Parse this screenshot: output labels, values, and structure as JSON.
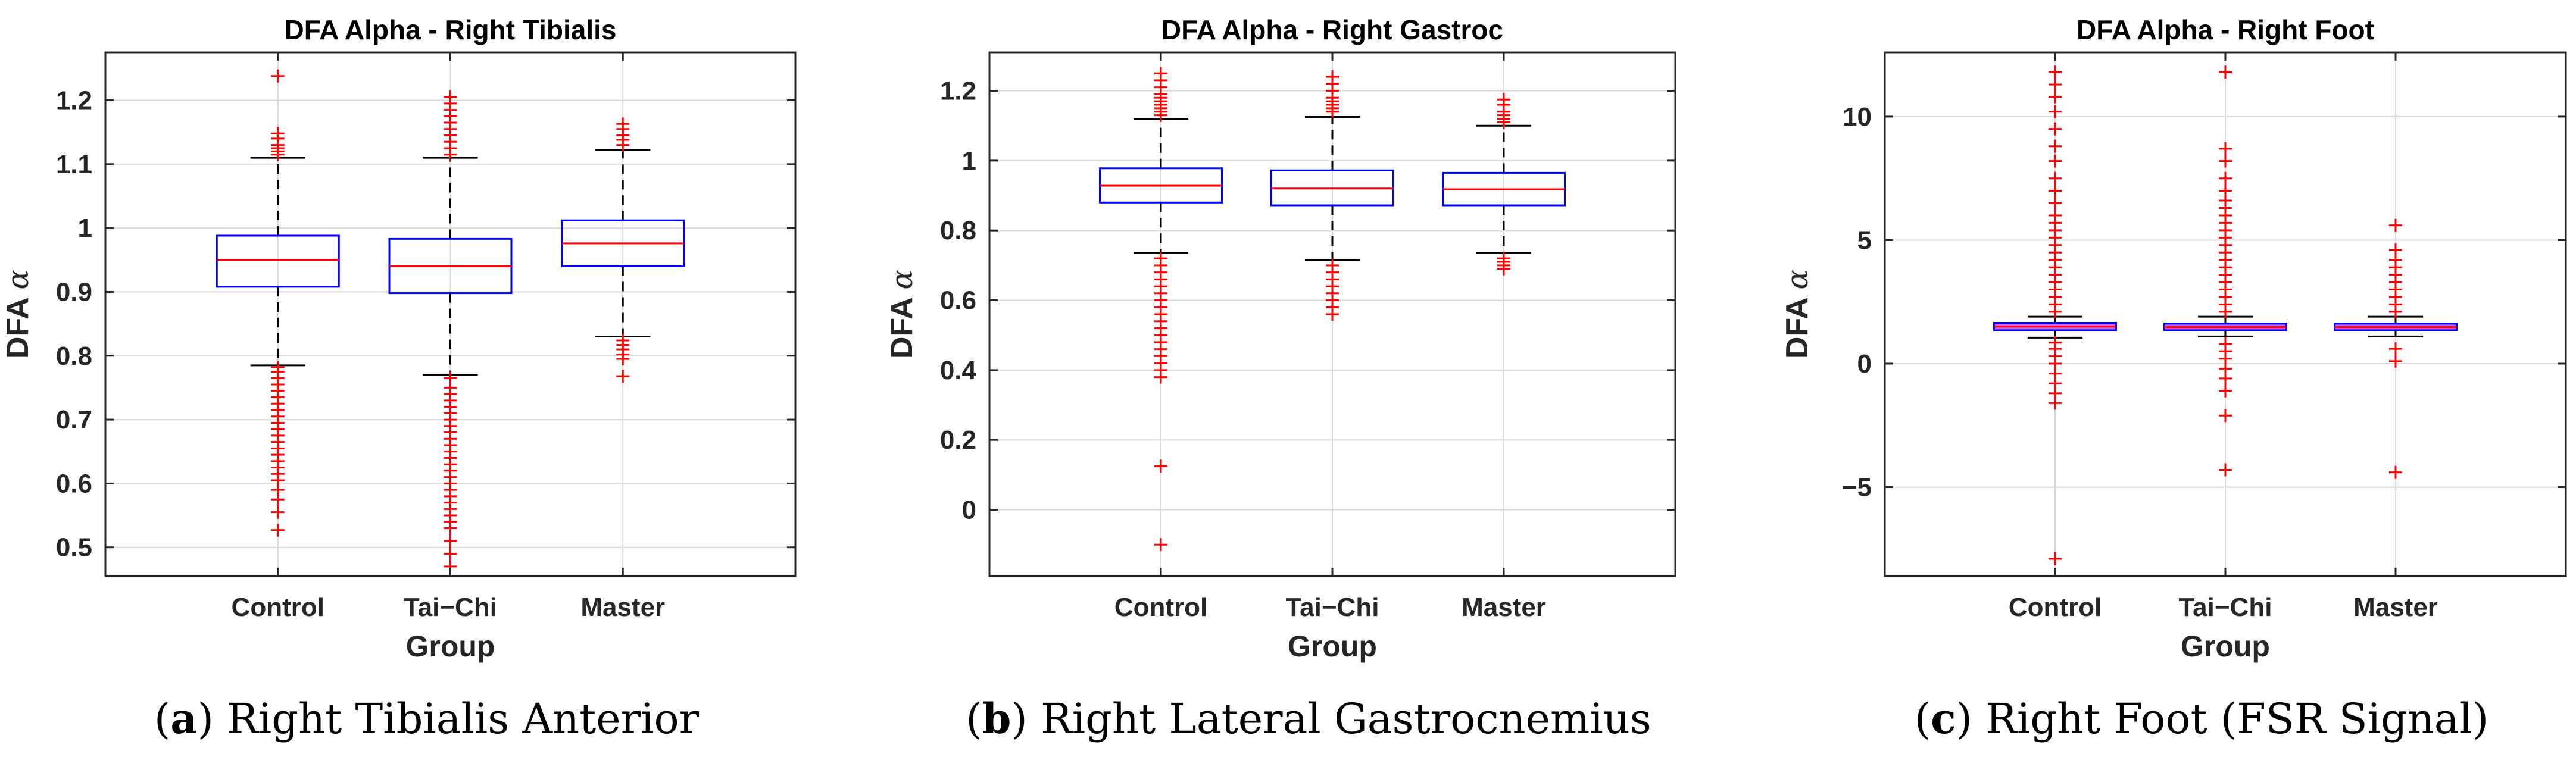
{
  "colors": {
    "box": "#0000ff",
    "median": "#ff0000",
    "whisker": "#000000",
    "outlier": "#ff0000",
    "compressed_box_fill": "#c864ff",
    "grid": "#d9d9d9",
    "axes": "#262626"
  },
  "chart_data": [
    {
      "type": "boxplot",
      "title": "DFA Alpha - Right Tibialis",
      "caption": {
        "letter": "a",
        "text": "Right Tibialis Anterior"
      },
      "xlabel": "Group",
      "ylabel": "DFA",
      "ylabel_symbol": "α",
      "categories": [
        "Control",
        "Tai−Chi",
        "Master"
      ],
      "ylim": [
        0.455,
        1.275
      ],
      "yticks": [
        0.5,
        0.6,
        0.7,
        0.8,
        0.9,
        1,
        1.1,
        1.2
      ],
      "ytick_labels": [
        "0.5",
        "0.6",
        "0.7",
        "0.8",
        "0.9",
        "1",
        "1.1",
        "1.2"
      ],
      "grid": true,
      "boxes": [
        {
          "group": "Control",
          "whisker_low": 0.785,
          "q1": 0.908,
          "median": 0.95,
          "q3": 0.988,
          "whisker_high": 1.11,
          "outliers_high": [
            1.115,
            1.12,
            1.125,
            1.13,
            1.14,
            1.148,
            1.238
          ],
          "outliers_low": [
            0.527,
            0.555,
            0.575,
            0.59,
            0.605,
            0.615,
            0.625,
            0.635,
            0.645,
            0.655,
            0.665,
            0.675,
            0.685,
            0.695,
            0.705,
            0.715,
            0.725,
            0.735,
            0.745,
            0.755,
            0.765,
            0.775,
            0.782
          ]
        },
        {
          "group": "Tai−Chi",
          "whisker_low": 0.77,
          "q1": 0.898,
          "median": 0.94,
          "q3": 0.983,
          "whisker_high": 1.11,
          "outliers_high": [
            1.115,
            1.125,
            1.135,
            1.145,
            1.155,
            1.165,
            1.175,
            1.185,
            1.195,
            1.205
          ],
          "outliers_low": [
            0.47,
            0.49,
            0.51,
            0.53,
            0.54,
            0.55,
            0.56,
            0.57,
            0.58,
            0.59,
            0.6,
            0.61,
            0.62,
            0.63,
            0.64,
            0.65,
            0.66,
            0.67,
            0.68,
            0.69,
            0.7,
            0.71,
            0.72,
            0.73,
            0.74,
            0.75,
            0.765
          ]
        },
        {
          "group": "Master",
          "whisker_low": 0.83,
          "q1": 0.94,
          "median": 0.976,
          "q3": 1.012,
          "whisker_high": 1.122,
          "outliers_high": [
            1.13,
            1.138,
            1.145,
            1.155,
            1.163
          ],
          "outliers_low": [
            0.768,
            0.795,
            0.802,
            0.81,
            0.817,
            0.824
          ]
        }
      ]
    },
    {
      "type": "boxplot",
      "title": "DFA Alpha - Right Gastroc",
      "caption": {
        "letter": "b",
        "text": "Right Lateral Gastrocnemius"
      },
      "xlabel": "Group",
      "ylabel": "DFA",
      "ylabel_symbol": "α",
      "categories": [
        "Control",
        "Tai−Chi",
        "Master"
      ],
      "ylim": [
        -0.19,
        1.31
      ],
      "yticks": [
        0,
        0.2,
        0.4,
        0.6,
        0.8,
        1,
        1.2
      ],
      "ytick_labels": [
        "0",
        "0.2",
        "0.4",
        "0.6",
        "0.8",
        "1",
        "1.2"
      ],
      "grid": true,
      "boxes": [
        {
          "group": "Control",
          "whisker_low": 0.735,
          "q1": 0.88,
          "median": 0.928,
          "q3": 0.978,
          "whisker_high": 1.12,
          "outliers_high": [
            1.13,
            1.14,
            1.15,
            1.16,
            1.17,
            1.18,
            1.19,
            1.21,
            1.23,
            1.25
          ],
          "outliers_low": [
            -0.1,
            0.125,
            0.38,
            0.4,
            0.42,
            0.44,
            0.46,
            0.48,
            0.5,
            0.52,
            0.54,
            0.56,
            0.58,
            0.6,
            0.62,
            0.64,
            0.66,
            0.68,
            0.7,
            0.72
          ]
        },
        {
          "group": "Tai−Chi",
          "whisker_low": 0.715,
          "q1": 0.872,
          "median": 0.92,
          "q3": 0.972,
          "whisker_high": 1.125,
          "outliers_high": [
            1.14,
            1.15,
            1.16,
            1.17,
            1.18,
            1.2,
            1.22,
            1.24
          ],
          "outliers_low": [
            0.56,
            0.58,
            0.6,
            0.62,
            0.64,
            0.66,
            0.68,
            0.7
          ]
        },
        {
          "group": "Master",
          "whisker_low": 0.735,
          "q1": 0.872,
          "median": 0.918,
          "q3": 0.965,
          "whisker_high": 1.1,
          "outliers_high": [
            1.11,
            1.12,
            1.13,
            1.14,
            1.16,
            1.175
          ],
          "outliers_low": [
            0.69,
            0.7,
            0.71,
            0.72
          ]
        }
      ]
    },
    {
      "type": "boxplot",
      "title": "DFA Alpha - Right Foot",
      "caption": {
        "letter": "c",
        "text": "Right Foot (FSR Signal)"
      },
      "xlabel": "Group",
      "ylabel": "DFA",
      "ylabel_symbol": "α",
      "categories": [
        "Control",
        "Tai−Chi",
        "Master"
      ],
      "ylim": [
        -8.6,
        12.6
      ],
      "yticks": [
        -5,
        0,
        5,
        10
      ],
      "ytick_labels": [
        "−5",
        "0",
        "5",
        "10"
      ],
      "grid": true,
      "boxes": [
        {
          "group": "Control",
          "whisker_low": 1.05,
          "q1": 1.35,
          "median": 1.5,
          "q3": 1.65,
          "whisker_high": 1.9,
          "outliers_high": [
            2.1,
            2.4,
            2.7,
            3.0,
            3.3,
            3.6,
            3.9,
            4.2,
            4.5,
            4.8,
            5.1,
            5.4,
            5.7,
            6.0,
            6.5,
            7.0,
            7.5,
            8.2,
            8.8,
            9.5,
            10.2,
            10.8,
            11.3,
            11.8
          ],
          "outliers_low": [
            -7.9,
            -1.6,
            -1.2,
            -0.8,
            -0.4,
            0.0,
            0.3,
            0.6,
            0.85
          ]
        },
        {
          "group": "Tai−Chi",
          "whisker_low": 1.1,
          "q1": 1.35,
          "median": 1.48,
          "q3": 1.62,
          "whisker_high": 1.9,
          "outliers_high": [
            2.1,
            2.4,
            2.7,
            3.0,
            3.3,
            3.6,
            3.9,
            4.2,
            4.5,
            4.8,
            5.1,
            5.4,
            5.7,
            6.0,
            6.3,
            6.6,
            7.0,
            7.5,
            8.2,
            8.7,
            11.8
          ],
          "outliers_low": [
            -4.3,
            -2.1,
            -1.1,
            -0.6,
            -0.2,
            0.2,
            0.5,
            0.8
          ]
        },
        {
          "group": "Master",
          "whisker_low": 1.1,
          "q1": 1.35,
          "median": 1.48,
          "q3": 1.62,
          "whisker_high": 1.9,
          "outliers_high": [
            2.1,
            2.4,
            2.7,
            3.0,
            3.3,
            3.6,
            3.9,
            4.2,
            4.6,
            5.6
          ],
          "outliers_low": [
            -4.4,
            0.1,
            0.6
          ]
        }
      ]
    }
  ]
}
